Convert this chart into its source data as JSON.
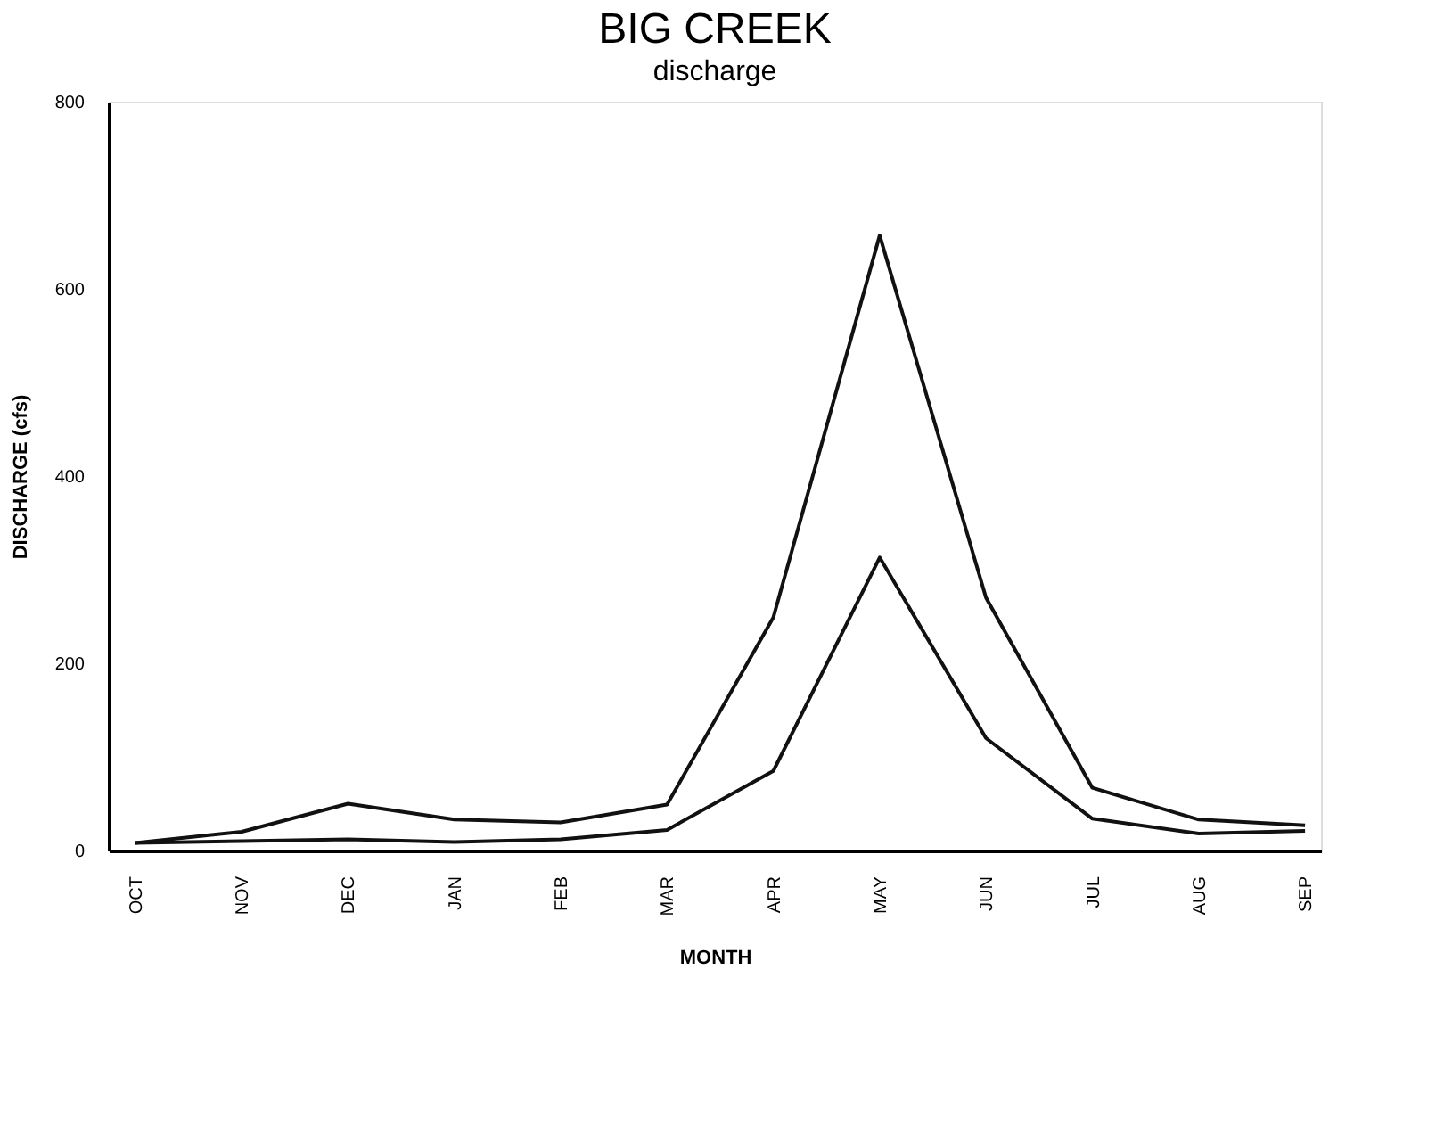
{
  "chart_data": {
    "type": "line",
    "title": "BIG CREEK",
    "subtitle": "discharge",
    "xlabel": "MONTH",
    "ylabel": "DISCHARGE (cfs)",
    "categories": [
      "OCT",
      "NOV",
      "DEC",
      "JAN",
      "FEB",
      "MAR",
      "APR",
      "MAY",
      "JUN",
      "JUL",
      "AUG",
      "SEP"
    ],
    "series": [
      {
        "color": "#111111",
        "values": [
          8,
          20,
          50,
          33,
          30,
          49,
          249,
          657,
          270,
          67,
          33,
          27
        ]
      },
      {
        "color": "#111111",
        "values": [
          8,
          10,
          12,
          9,
          12,
          22,
          85,
          313,
          120,
          34,
          18,
          21
        ]
      }
    ],
    "ylim": [
      0,
      800
    ],
    "yticks": [
      0,
      200,
      400,
      600,
      800
    ],
    "grid": false,
    "marker": "none",
    "line_style": "solid"
  }
}
